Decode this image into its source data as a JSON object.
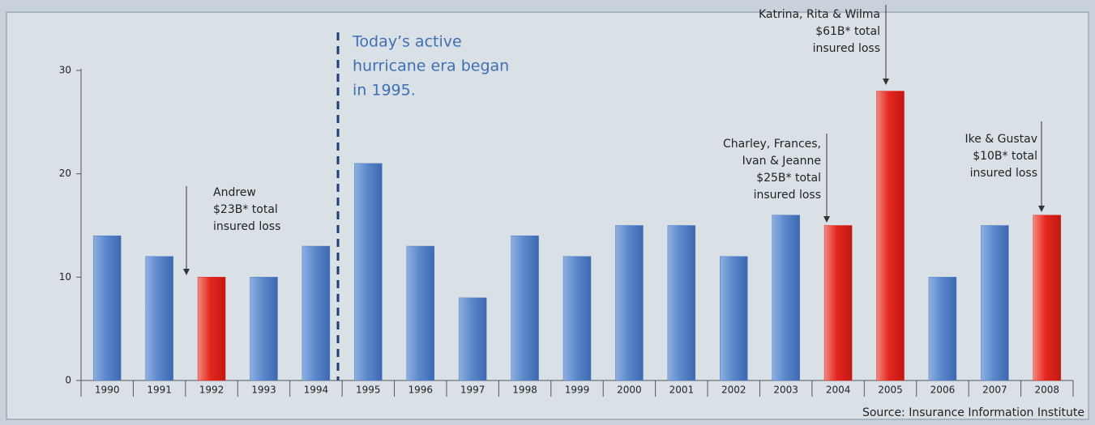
{
  "chart_data": {
    "type": "bar",
    "categories": [
      "1990",
      "1991",
      "1992",
      "1993",
      "1994",
      "1995",
      "1996",
      "1997",
      "1998",
      "1999",
      "2000",
      "2001",
      "2002",
      "2003",
      "2004",
      "2005",
      "2006",
      "2007",
      "2008"
    ],
    "values": [
      14,
      12,
      10,
      10,
      13,
      21,
      13,
      8,
      14,
      12,
      15,
      15,
      12,
      16,
      15,
      28,
      10,
      15,
      16
    ],
    "colors": [
      "#4f7cc4",
      "#4f7cc4",
      "#e5261f",
      "#4f7cc4",
      "#4f7cc4",
      "#4f7cc4",
      "#4f7cc4",
      "#4f7cc4",
      "#4f7cc4",
      "#4f7cc4",
      "#4f7cc4",
      "#4f7cc4",
      "#4f7cc4",
      "#4f7cc4",
      "#e5261f",
      "#e5261f",
      "#4f7cc4",
      "#4f7cc4",
      "#e5261f"
    ],
    "ylim": [
      0,
      30
    ],
    "yticks": [
      0,
      10,
      20,
      30
    ],
    "era_note": [
      "Today’s active",
      "hurricane era began",
      "in 1995."
    ],
    "annotations": [
      {
        "lines": [
          "Andrew",
          "$23B* total",
          "insured loss"
        ]
      },
      {
        "lines": [
          "Charley, Frances,",
          "Ivan & Jeanne",
          "$25B* total",
          "insured loss"
        ]
      },
      {
        "lines": [
          "Katrina, Rita & Wilma",
          "$61B* total",
          "insured loss"
        ]
      },
      {
        "lines": [
          "Ike & Gustav",
          "$10B* total",
          "insured loss"
        ]
      }
    ],
    "source": "Source: Insurance Information Institute"
  }
}
